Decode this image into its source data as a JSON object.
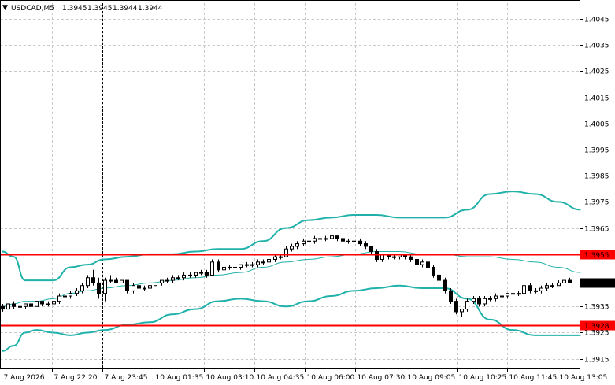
{
  "header": {
    "symbol_label": "USDCAD,M5",
    "ohlc": [
      "1.3945",
      "1.3945",
      "1.3944",
      "1.3944"
    ]
  },
  "colors": {
    "band": "#20B2AA",
    "level_line": "#FF0000",
    "level_label_bg": "#FF0000",
    "current_label_bg": "#000000",
    "grid": "#C8C8C8",
    "candle": "#000000"
  },
  "chart_data": {
    "type": "candlestick",
    "title": "USDCAD,M5",
    "ylim": [
      1.3911,
      1.4051
    ],
    "y_ticks": [
      "1.4045",
      "1.4035",
      "1.4025",
      "1.4015",
      "1.4005",
      "1.3995",
      "1.3985",
      "1.3975",
      "1.3965",
      "1.3935",
      "1.3925",
      "1.3915"
    ],
    "x_ticks": [
      "7 Aug 2026",
      "7 Aug 22:20",
      "7 Aug 23:45",
      "10 Aug 01:35",
      "10 Aug 03:10",
      "10 Aug 04:35",
      "10 Aug 06:00",
      "10 Aug 07:30",
      "10 Aug 09:05",
      "10 Aug 10:25",
      "10 Aug 11:45",
      "10 Aug 13:05"
    ],
    "horizontal_levels": [
      {
        "label": "1.3955",
        "value": 1.3955
      },
      {
        "label": "1.3928",
        "value": 1.3928
      }
    ],
    "current_price": {
      "label": "1.3944",
      "value": 1.3944
    },
    "crosshair_x_tick": "7 Aug 23:45",
    "bollinger": {
      "upper": [
        1.3956,
        1.3954,
        1.3945,
        1.3945,
        1.3945,
        1.395,
        1.3951,
        1.3953,
        1.3954,
        1.3955,
        1.3955,
        1.3956,
        1.3957,
        1.3957,
        1.396,
        1.3965,
        1.3968,
        1.3969,
        1.397,
        1.397,
        1.3969,
        1.3969,
        1.3969,
        1.3972,
        1.3978,
        1.3979,
        1.3978,
        1.3975,
        1.3972
      ],
      "middle": [
        1.3935,
        1.3936,
        1.3937,
        1.3937,
        1.3938,
        1.394,
        1.3941,
        1.3942,
        1.3943,
        1.3944,
        1.3945,
        1.3946,
        1.3947,
        1.3948,
        1.395,
        1.3952,
        1.3953,
        1.3954,
        1.3955,
        1.3956,
        1.3956,
        1.3955,
        1.3955,
        1.3954,
        1.3954,
        1.3953,
        1.3952,
        1.395,
        1.3948
      ],
      "lower": [
        1.3918,
        1.392,
        1.3925,
        1.3926,
        1.3925,
        1.3924,
        1.3925,
        1.3926,
        1.3928,
        1.3929,
        1.3932,
        1.3934,
        1.3937,
        1.3938,
        1.3937,
        1.3935,
        1.3937,
        1.3939,
        1.3941,
        1.3942,
        1.3943,
        1.3942,
        1.3942,
        1.3938,
        1.393,
        1.3926,
        1.3924,
        1.3924,
        1.3924
      ],
      "x_index": [
        0,
        2,
        4,
        6,
        9,
        12,
        15,
        18,
        22,
        26,
        30,
        34,
        38,
        42,
        46,
        50,
        54,
        58,
        62,
        66,
        70,
        74,
        78,
        82,
        86,
        90,
        94,
        98,
        102
      ]
    },
    "candles": [
      [
        1.3935,
        1.3936,
        1.3933,
        1.3934
      ],
      [
        1.3934,
        1.3936,
        1.3934,
        1.3936
      ],
      [
        1.3936,
        1.3937,
        1.3934,
        1.3935
      ],
      [
        1.3935,
        1.3936,
        1.3934,
        1.3935
      ],
      [
        1.3935,
        1.3936,
        1.3934,
        1.3936
      ],
      [
        1.3936,
        1.3937,
        1.3935,
        1.3935
      ],
      [
        1.3935,
        1.3937,
        1.3935,
        1.3937
      ],
      [
        1.3937,
        1.3937,
        1.3935,
        1.3936
      ],
      [
        1.3936,
        1.3937,
        1.3935,
        1.3936
      ],
      [
        1.3936,
        1.3937,
        1.3935,
        1.3937
      ],
      [
        1.3937,
        1.394,
        1.3936,
        1.3939
      ],
      [
        1.3939,
        1.394,
        1.3938,
        1.3939
      ],
      [
        1.3939,
        1.3941,
        1.3938,
        1.394
      ],
      [
        1.394,
        1.3942,
        1.3939,
        1.3941
      ],
      [
        1.3941,
        1.3944,
        1.394,
        1.3943
      ],
      [
        1.3943,
        1.3947,
        1.3942,
        1.3946
      ],
      [
        1.3946,
        1.3949,
        1.3943,
        1.3944
      ],
      [
        1.3944,
        1.3946,
        1.3938,
        1.394
      ],
      [
        1.394,
        1.3946,
        1.3937,
        1.3945
      ],
      [
        1.3945,
        1.3947,
        1.3944,
        1.3945
      ],
      [
        1.3945,
        1.3946,
        1.3944,
        1.3944
      ],
      [
        1.3944,
        1.3945,
        1.3944,
        1.3945
      ],
      [
        1.3945,
        1.3945,
        1.394,
        1.3941
      ],
      [
        1.3941,
        1.3944,
        1.394,
        1.3943
      ],
      [
        1.3943,
        1.3944,
        1.3941,
        1.3942
      ],
      [
        1.3942,
        1.3943,
        1.3941,
        1.3942
      ],
      [
        1.3942,
        1.3944,
        1.3942,
        1.3943
      ],
      [
        1.3943,
        1.3944,
        1.3943,
        1.3944
      ],
      [
        1.3944,
        1.3945,
        1.3943,
        1.3945
      ],
      [
        1.3945,
        1.3946,
        1.3944,
        1.3945
      ],
      [
        1.3945,
        1.3947,
        1.3944,
        1.3946
      ],
      [
        1.3946,
        1.3947,
        1.3945,
        1.3946
      ],
      [
        1.3946,
        1.3948,
        1.3945,
        1.3947
      ],
      [
        1.3947,
        1.3948,
        1.3946,
        1.3947
      ],
      [
        1.3947,
        1.3948,
        1.3946,
        1.3948
      ],
      [
        1.3948,
        1.3949,
        1.3947,
        1.3948
      ],
      [
        1.3948,
        1.3949,
        1.3946,
        1.3947
      ],
      [
        1.3947,
        1.3953,
        1.3947,
        1.3952
      ],
      [
        1.3952,
        1.3953,
        1.3948,
        1.3949
      ],
      [
        1.3949,
        1.3951,
        1.3948,
        1.395
      ],
      [
        1.395,
        1.3951,
        1.3949,
        1.395
      ],
      [
        1.395,
        1.3951,
        1.3949,
        1.395
      ],
      [
        1.395,
        1.3951,
        1.3949,
        1.3951
      ],
      [
        1.3951,
        1.3952,
        1.395,
        1.3951
      ],
      [
        1.3951,
        1.3952,
        1.395,
        1.3951
      ],
      [
        1.3951,
        1.3953,
        1.395,
        1.3952
      ],
      [
        1.3952,
        1.3953,
        1.3951,
        1.3952
      ],
      [
        1.3952,
        1.3953,
        1.3951,
        1.3953
      ],
      [
        1.3953,
        1.3955,
        1.3952,
        1.3954
      ],
      [
        1.3954,
        1.3955,
        1.3953,
        1.3954
      ],
      [
        1.3954,
        1.3958,
        1.3954,
        1.3957
      ],
      [
        1.3957,
        1.3959,
        1.3956,
        1.3958
      ],
      [
        1.3958,
        1.396,
        1.3957,
        1.3959
      ],
      [
        1.3959,
        1.3961,
        1.3958,
        1.396
      ],
      [
        1.396,
        1.3961,
        1.3959,
        1.396
      ],
      [
        1.396,
        1.3962,
        1.3959,
        1.3961
      ],
      [
        1.3961,
        1.3962,
        1.396,
        1.3961
      ],
      [
        1.3961,
        1.3962,
        1.396,
        1.3961
      ],
      [
        1.3961,
        1.3962,
        1.396,
        1.3962
      ],
      [
        1.3962,
        1.3962,
        1.396,
        1.3961
      ],
      [
        1.3961,
        1.3962,
        1.3959,
        1.396
      ],
      [
        1.396,
        1.3961,
        1.3959,
        1.396
      ],
      [
        1.396,
        1.3961,
        1.3959,
        1.396
      ],
      [
        1.396,
        1.3961,
        1.3958,
        1.3959
      ],
      [
        1.3959,
        1.396,
        1.3957,
        1.3958
      ],
      [
        1.3958,
        1.3958,
        1.3955,
        1.3956
      ],
      [
        1.3956,
        1.3957,
        1.3952,
        1.3953
      ],
      [
        1.3953,
        1.3955,
        1.3952,
        1.3955
      ],
      [
        1.3955,
        1.3955,
        1.3953,
        1.3954
      ],
      [
        1.3954,
        1.3955,
        1.3953,
        1.3954
      ],
      [
        1.3954,
        1.3955,
        1.3953,
        1.3955
      ],
      [
        1.3955,
        1.3955,
        1.3953,
        1.3954
      ],
      [
        1.3954,
        1.3955,
        1.3952,
        1.3953
      ],
      [
        1.3953,
        1.3954,
        1.395,
        1.3951
      ],
      [
        1.3951,
        1.3953,
        1.395,
        1.3952
      ],
      [
        1.3952,
        1.3953,
        1.3949,
        1.395
      ],
      [
        1.395,
        1.3951,
        1.3946,
        1.3947
      ],
      [
        1.3947,
        1.3948,
        1.3944,
        1.3945
      ],
      [
        1.3945,
        1.3946,
        1.394,
        1.3941
      ],
      [
        1.3941,
        1.3942,
        1.3936,
        1.3937
      ],
      [
        1.3937,
        1.3938,
        1.3932,
        1.3933
      ],
      [
        1.3933,
        1.3934,
        1.3931,
        1.3934
      ],
      [
        1.3934,
        1.3938,
        1.3933,
        1.3937
      ],
      [
        1.3937,
        1.3939,
        1.3936,
        1.3938
      ],
      [
        1.3938,
        1.3939,
        1.3935,
        1.3936
      ],
      [
        1.3936,
        1.3939,
        1.3935,
        1.3938
      ],
      [
        1.3938,
        1.3939,
        1.3937,
        1.3938
      ],
      [
        1.3938,
        1.394,
        1.3937,
        1.3939
      ],
      [
        1.3939,
        1.394,
        1.3938,
        1.3939
      ],
      [
        1.3939,
        1.394,
        1.3938,
        1.394
      ],
      [
        1.394,
        1.3941,
        1.3939,
        1.394
      ],
      [
        1.394,
        1.3941,
        1.3939,
        1.394
      ],
      [
        1.394,
        1.3944,
        1.394,
        1.3943
      ],
      [
        1.3943,
        1.3944,
        1.394,
        1.3941
      ],
      [
        1.3941,
        1.3942,
        1.394,
        1.3941
      ],
      [
        1.3941,
        1.3943,
        1.394,
        1.3942
      ],
      [
        1.3942,
        1.3944,
        1.3941,
        1.3943
      ],
      [
        1.3943,
        1.3944,
        1.3942,
        1.3943
      ],
      [
        1.3943,
        1.3945,
        1.3943,
        1.3944
      ],
      [
        1.3944,
        1.3945,
        1.3944,
        1.3945
      ],
      [
        1.3945,
        1.3946,
        1.3944,
        1.3944
      ]
    ]
  }
}
